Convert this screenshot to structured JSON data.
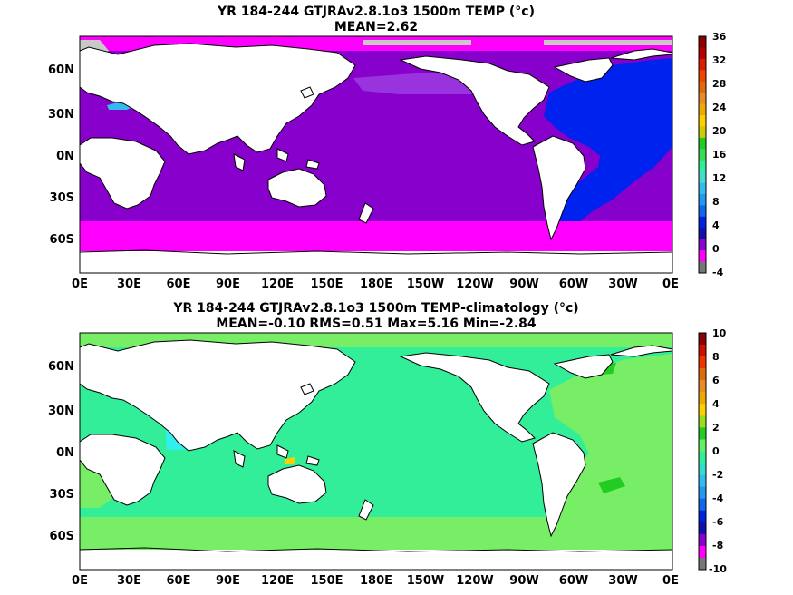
{
  "panels": [
    {
      "title_line1": "YR 184-244 GTJRAv2.8.1o3 1500m TEMP (°c)",
      "title_line2": "MEAN=2.62",
      "xticks": [
        "0E",
        "30E",
        "60E",
        "90E",
        "120E",
        "150E",
        "180E",
        "150W",
        "120W",
        "90W",
        "60W",
        "30W",
        "0E"
      ],
      "yticks": [
        "60N",
        "30N",
        "0N",
        "30S",
        "60S"
      ],
      "colorbar": {
        "labels": [
          "36",
          "32",
          "28",
          "24",
          "20",
          "16",
          "12",
          "8",
          "4",
          "0",
          "-4"
        ],
        "colors_top_to_bottom": [
          "#8b0000",
          "#b20000",
          "#dd1a00",
          "#ee4400",
          "#e06a10",
          "#e68c28",
          "#eeaa00",
          "#ffd000",
          "#cccc00",
          "#22cc22",
          "#33dd55",
          "#33ee99",
          "#44ddcc",
          "#33bbee",
          "#2299ee",
          "#1166ee",
          "#0022dd",
          "#1111aa",
          "#8a00cc",
          "#ff00ff",
          "#777777"
        ]
      },
      "field_colors": {
        "ocean_main": "#8800cc",
        "southern": "#ff00ff",
        "atlantic": "#0022ee",
        "north_pacific": "#9933dd",
        "sea_ice": "#c8c8c8",
        "land": "#ffffff"
      }
    },
    {
      "title_line1": "YR 184-244 GTJRAv2.8.1o3 1500m TEMP-climatology (°c)",
      "title_line2": "MEAN=-0.10   RMS=0.51   Max=5.16   Min=-2.84",
      "xticks": [
        "0E",
        "30E",
        "60E",
        "90E",
        "120E",
        "150E",
        "180E",
        "150W",
        "120W",
        "90W",
        "60W",
        "30W",
        "0E"
      ],
      "yticks": [
        "60N",
        "30N",
        "0N",
        "30S",
        "60S"
      ],
      "colorbar": {
        "labels": [
          "10",
          "8",
          "6",
          "4",
          "2",
          "0",
          "-2",
          "-4",
          "-6",
          "-8",
          "-10"
        ],
        "colors_top_to_bottom": [
          "#8b0000",
          "#cc1100",
          "#ee3300",
          "#e06a10",
          "#e68c28",
          "#eeaa00",
          "#ffd000",
          "#99dd22",
          "#22cc22",
          "#66ee66",
          "#33ee99",
          "#33ddcc",
          "#33bbee",
          "#2299ee",
          "#1166ee",
          "#0022dd",
          "#1111aa",
          "#8a00cc",
          "#ff00ff",
          "#777777"
        ]
      },
      "field_colors": {
        "ocean_main": "#33ee99",
        "southern": "#77ee66",
        "atlantic": "#77ee66",
        "anomaly_pos": "#22cc22",
        "anomaly_neg": "#33eeee",
        "land": "#ffffff"
      }
    }
  ]
}
